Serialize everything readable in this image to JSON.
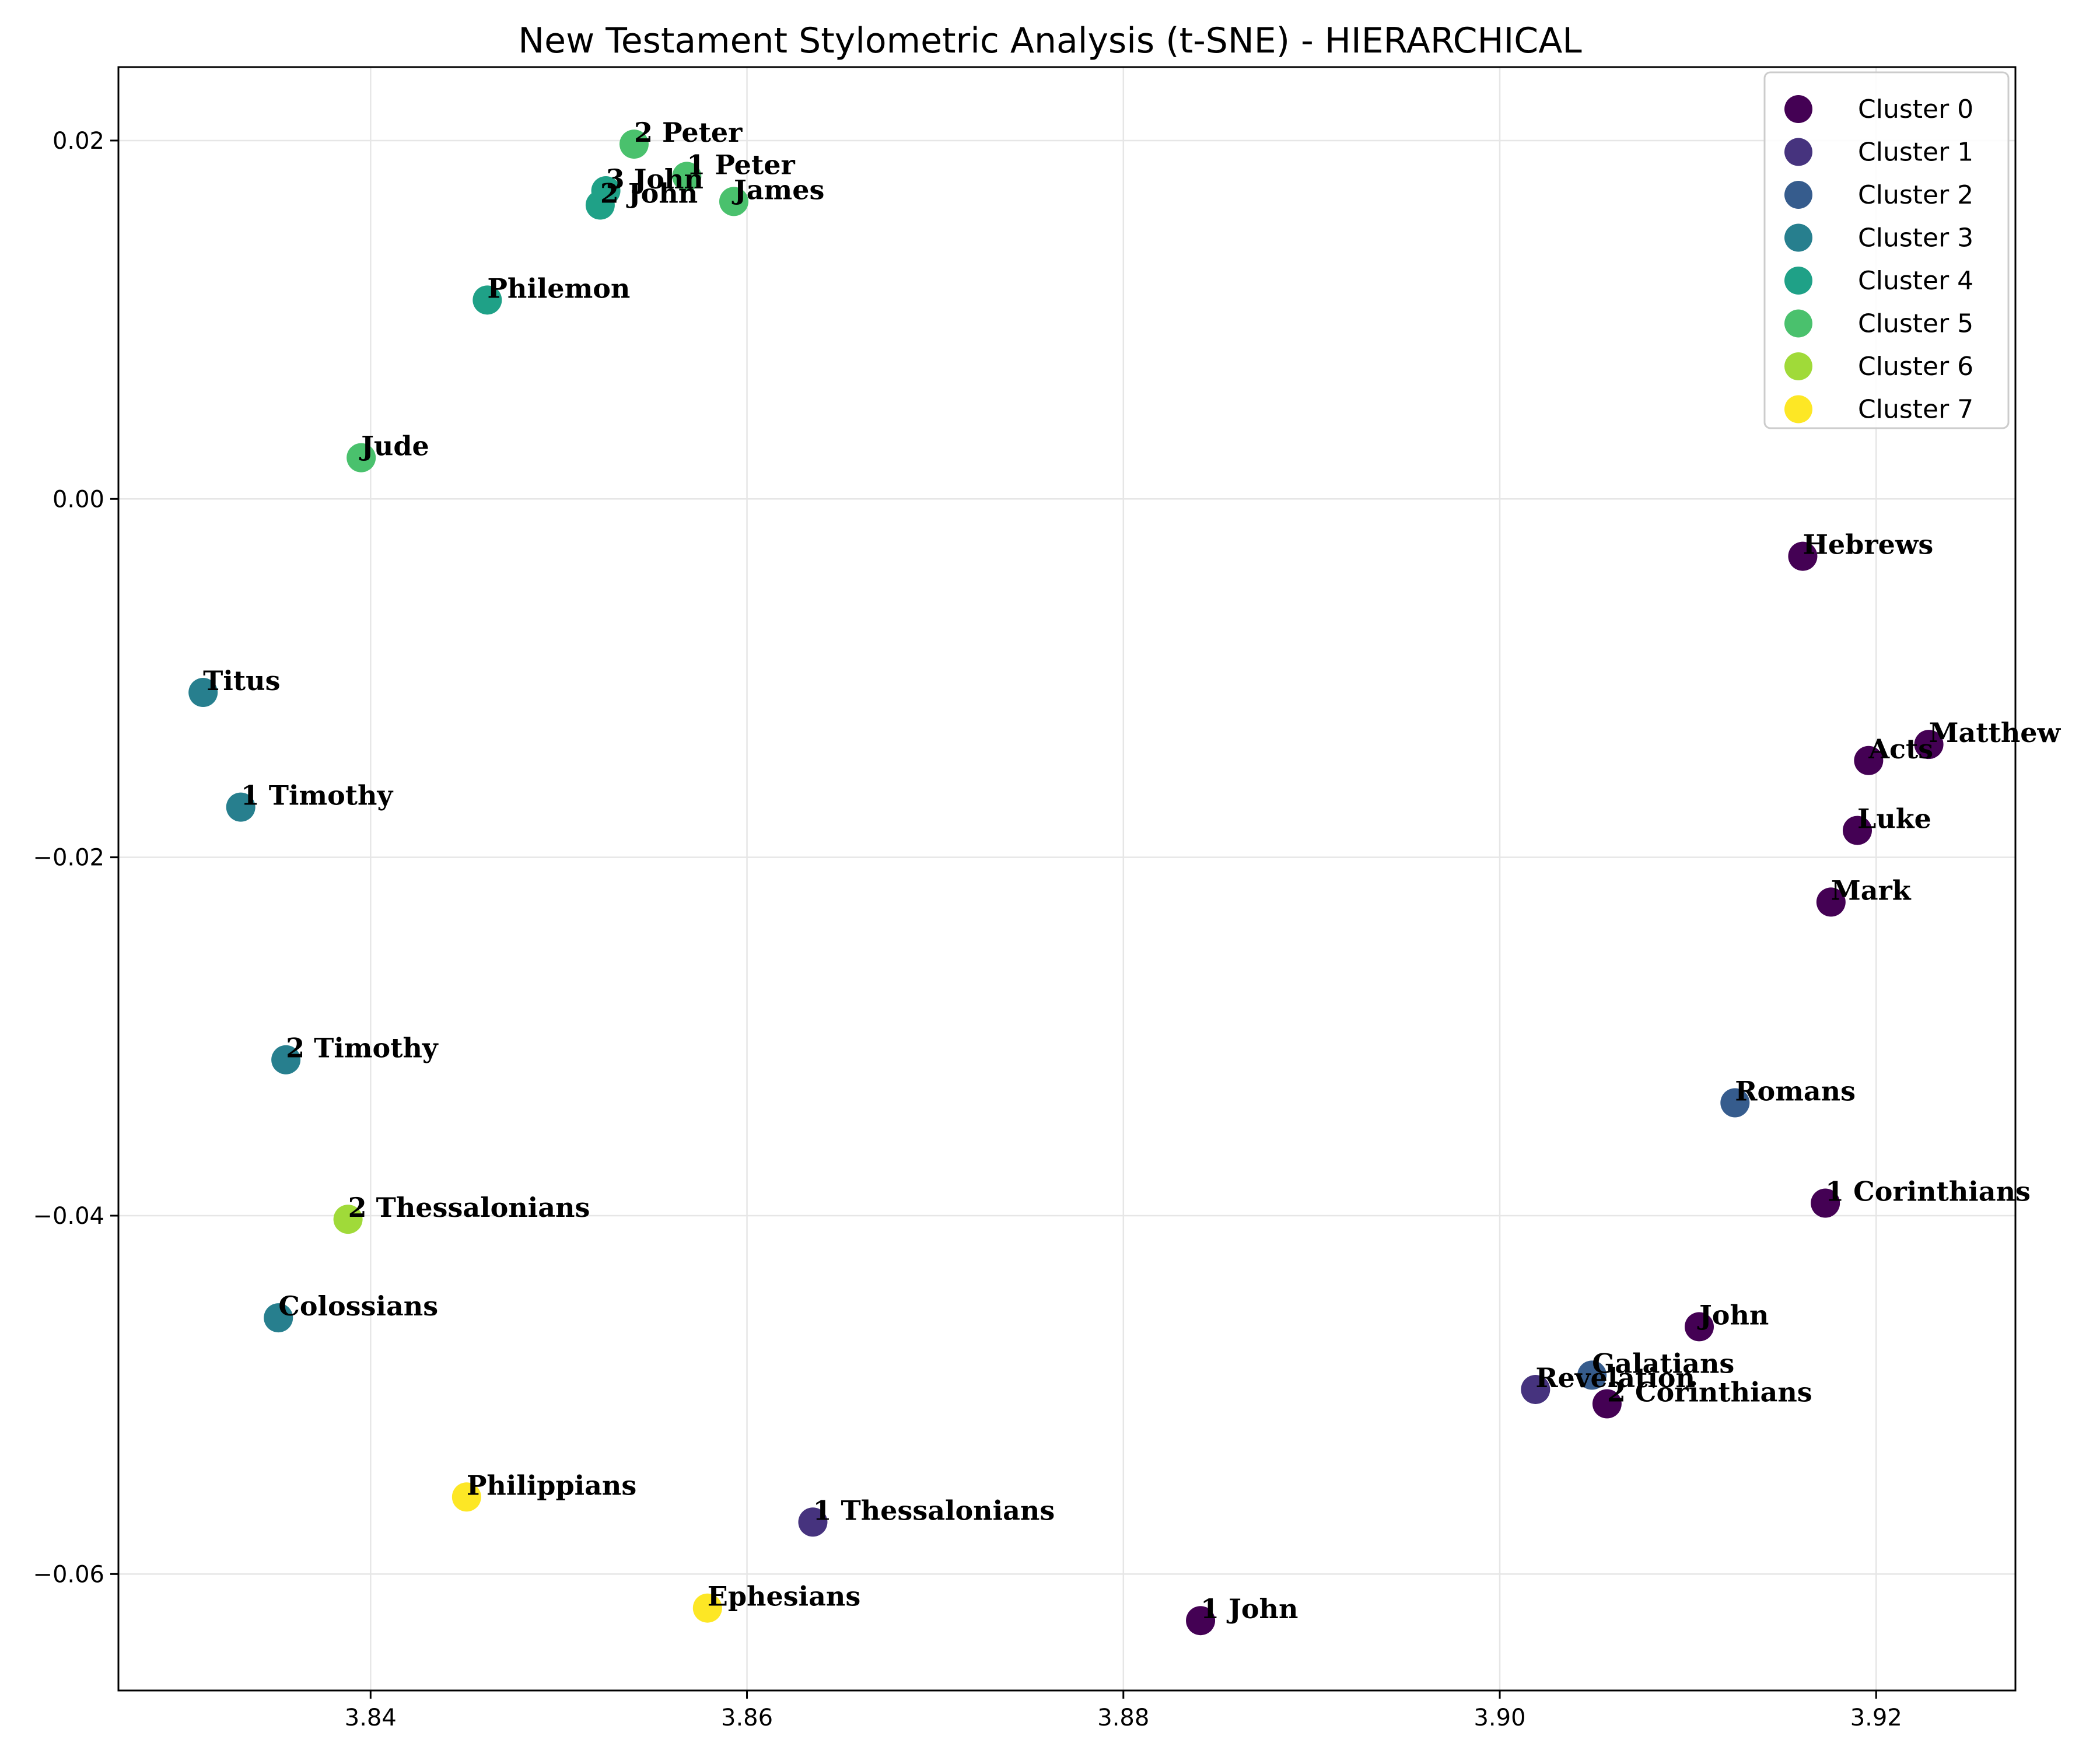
{
  "chart_data": {
    "type": "scatter",
    "title": "New Testament Stylometric Analysis (t-SNE) - HIERARCHICAL",
    "xlabel": "",
    "ylabel": "",
    "xlim": [
      3.8266,
      3.9274
    ],
    "ylim": [
      -0.0665,
      0.0241
    ],
    "xticks": [
      3.84,
      3.86,
      3.88,
      3.9,
      3.92
    ],
    "xtick_labels": [
      "3.84",
      "3.86",
      "3.88",
      "3.90",
      "3.92"
    ],
    "yticks": [
      0.02,
      0.0,
      -0.02,
      -0.04,
      -0.06
    ],
    "ytick_labels": [
      "0.02",
      "0.00",
      "−0.02",
      "−0.04",
      "−0.06"
    ],
    "grid": true,
    "legend_position": "top-right",
    "clusters": [
      {
        "name": "Cluster 0",
        "color": "#440154"
      },
      {
        "name": "Cluster 1",
        "color": "#46337e"
      },
      {
        "name": "Cluster 2",
        "color": "#365c8d"
      },
      {
        "name": "Cluster 3",
        "color": "#277f8e"
      },
      {
        "name": "Cluster 4",
        "color": "#1fa187"
      },
      {
        "name": "Cluster 5",
        "color": "#4ac16d"
      },
      {
        "name": "Cluster 6",
        "color": "#a0da39"
      },
      {
        "name": "Cluster 7",
        "color": "#fde725"
      }
    ],
    "points": [
      {
        "label": "2 Peter",
        "x": 3.854,
        "y": 0.0198,
        "cluster": 5
      },
      {
        "label": "1 Peter",
        "x": 3.8568,
        "y": 0.018,
        "cluster": 5
      },
      {
        "label": "3 John",
        "x": 3.8525,
        "y": 0.0172,
        "cluster": 4
      },
      {
        "label": "2 John",
        "x": 3.8522,
        "y": 0.0164,
        "cluster": 4
      },
      {
        "label": "James",
        "x": 3.8593,
        "y": 0.0166,
        "cluster": 5
      },
      {
        "label": "Philemon",
        "x": 3.8462,
        "y": 0.0111,
        "cluster": 4
      },
      {
        "label": "Jude",
        "x": 3.8395,
        "y": 0.0023,
        "cluster": 5
      },
      {
        "label": "Hebrews",
        "x": 3.9161,
        "y": -0.0032,
        "cluster": 0
      },
      {
        "label": "Titus",
        "x": 3.8311,
        "y": -0.0108,
        "cluster": 3
      },
      {
        "label": "Matthew",
        "x": 3.9228,
        "y": -0.0137,
        "cluster": 0
      },
      {
        "label": "Acts",
        "x": 3.9196,
        "y": -0.0146,
        "cluster": 0
      },
      {
        "label": "1 Timothy",
        "x": 3.8331,
        "y": -0.0172,
        "cluster": 3
      },
      {
        "label": "Luke",
        "x": 3.919,
        "y": -0.0185,
        "cluster": 0
      },
      {
        "label": "Mark",
        "x": 3.9176,
        "y": -0.0225,
        "cluster": 0
      },
      {
        "label": "2 Timothy",
        "x": 3.8355,
        "y": -0.0313,
        "cluster": 3
      },
      {
        "label": "Romans",
        "x": 3.9125,
        "y": -0.0337,
        "cluster": 2
      },
      {
        "label": "1 Corinthians",
        "x": 3.9173,
        "y": -0.0393,
        "cluster": 0
      },
      {
        "label": "2 Thessalonians",
        "x": 3.8388,
        "y": -0.0402,
        "cluster": 6
      },
      {
        "label": "Colossians",
        "x": 3.8351,
        "y": -0.0457,
        "cluster": 3
      },
      {
        "label": "John",
        "x": 3.9106,
        "y": -0.0462,
        "cluster": 0
      },
      {
        "label": "Galatians",
        "x": 3.9049,
        "y": -0.0489,
        "cluster": 2
      },
      {
        "label": "Revelation",
        "x": 3.9019,
        "y": -0.0497,
        "cluster": 1
      },
      {
        "label": "2 Corinthians",
        "x": 3.9057,
        "y": -0.0505,
        "cluster": 0
      },
      {
        "label": "Philippians",
        "x": 3.8451,
        "y": -0.0557,
        "cluster": 7
      },
      {
        "label": "1 Thessalonians",
        "x": 3.8635,
        "y": -0.0571,
        "cluster": 1
      },
      {
        "label": "Ephesians",
        "x": 3.8579,
        "y": -0.0619,
        "cluster": 7
      },
      {
        "label": "1 John",
        "x": 3.8841,
        "y": -0.0626,
        "cluster": 0
      }
    ]
  }
}
